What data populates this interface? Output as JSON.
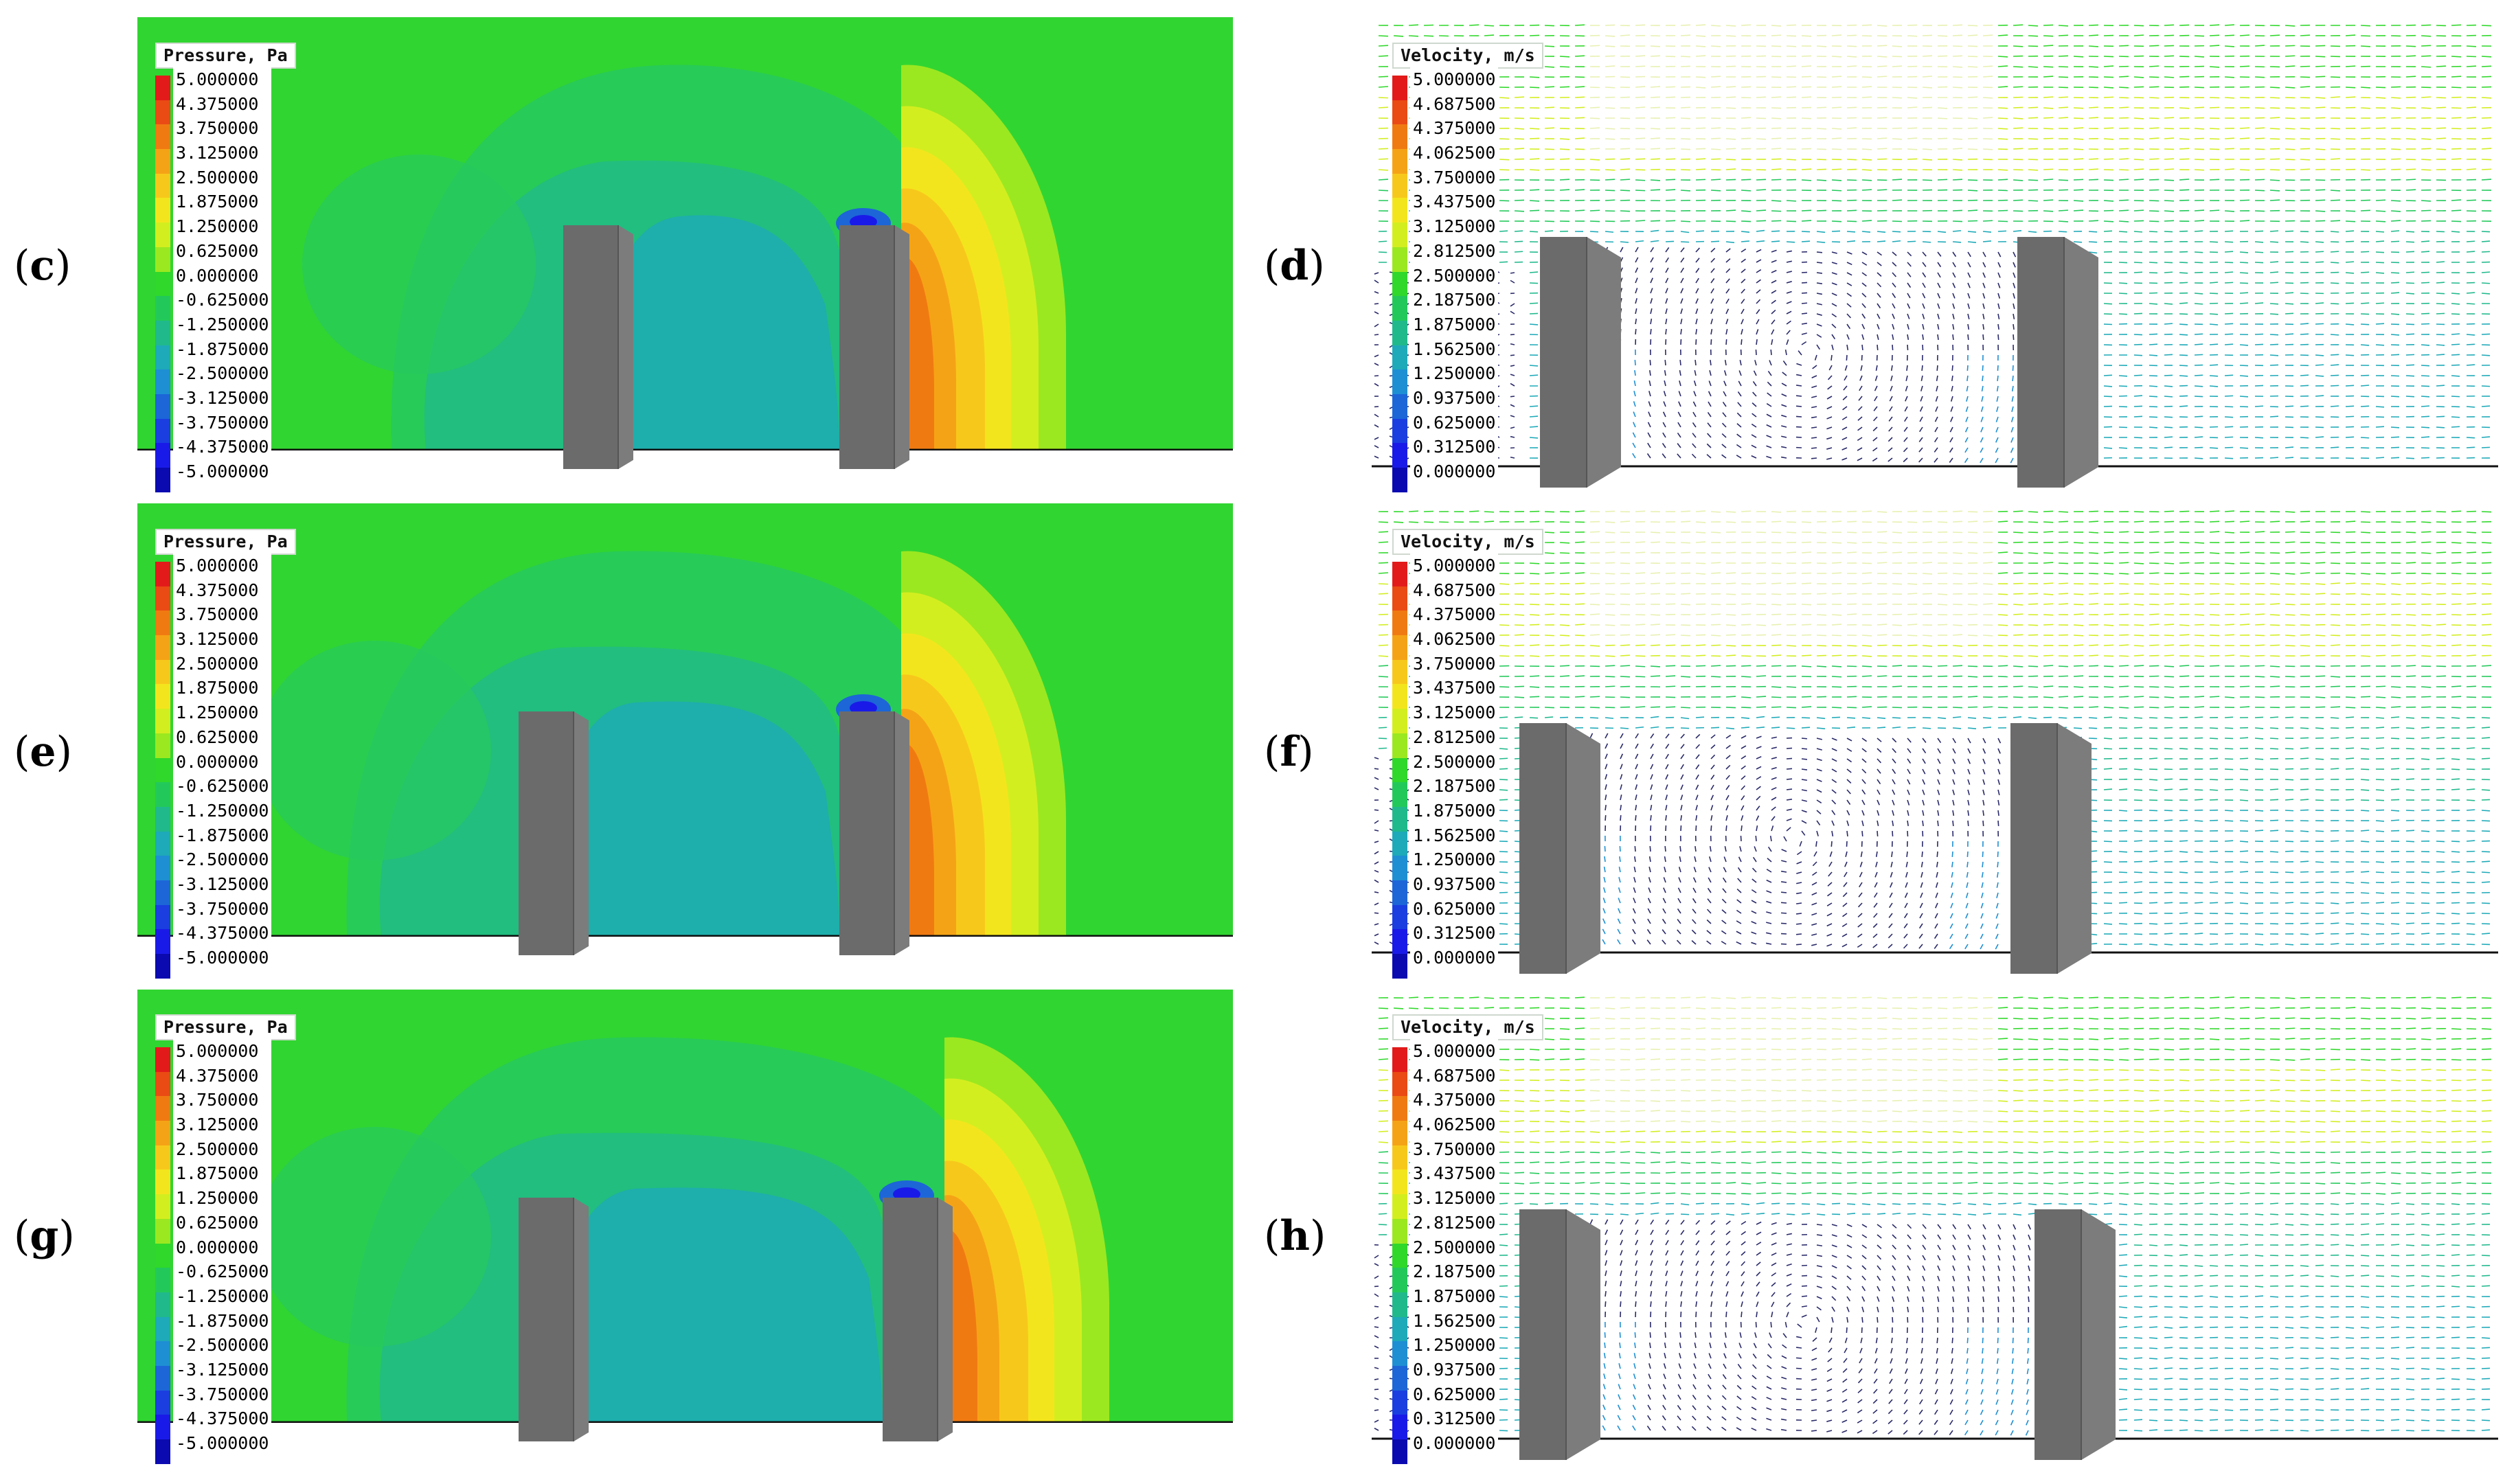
{
  "panels": {
    "c": {
      "label": "c",
      "legend_title": "Pressure, Pa"
    },
    "d": {
      "label": "d",
      "legend_title": "Velocity, m/s"
    },
    "e": {
      "label": "e",
      "legend_title": "Pressure, Pa"
    },
    "f": {
      "label": "f",
      "legend_title": "Velocity, m/s"
    },
    "g": {
      "label": "g",
      "legend_title": "Pressure, Pa"
    },
    "h": {
      "label": "h",
      "legend_title": "Velocity, m/s"
    }
  },
  "pressure_scale": [
    "5.000000",
    "4.375000",
    "3.750000",
    "3.125000",
    "2.500000",
    "1.875000",
    "1.250000",
    "0.625000",
    "0.000000",
    "-0.625000",
    "-1.250000",
    "-1.875000",
    "-2.500000",
    "-3.125000",
    "-3.750000",
    "-4.375000",
    "-5.000000"
  ],
  "velocity_scale": [
    "5.000000",
    "4.687500",
    "4.375000",
    "4.062500",
    "3.750000",
    "3.437500",
    "3.125000",
    "2.812500",
    "2.500000",
    "2.187500",
    "1.875000",
    "1.562500",
    "1.250000",
    "0.937500",
    "0.625000",
    "0.312500",
    "0.000000"
  ],
  "colors": {
    "scale": [
      "#e21a1a",
      "#ea4a14",
      "#f07a12",
      "#f5a316",
      "#f7c81c",
      "#f3e51d",
      "#d3ee1f",
      "#9be820",
      "#2fd82a",
      "#22c95a",
      "#20b98c",
      "#1eaab8",
      "#1e8fd3",
      "#1c66d8",
      "#1a3ee0",
      "#1a1ae8",
      "#0a0ab0"
    ],
    "pressure_base": "#31d531",
    "building": "#6b6b6b"
  }
}
